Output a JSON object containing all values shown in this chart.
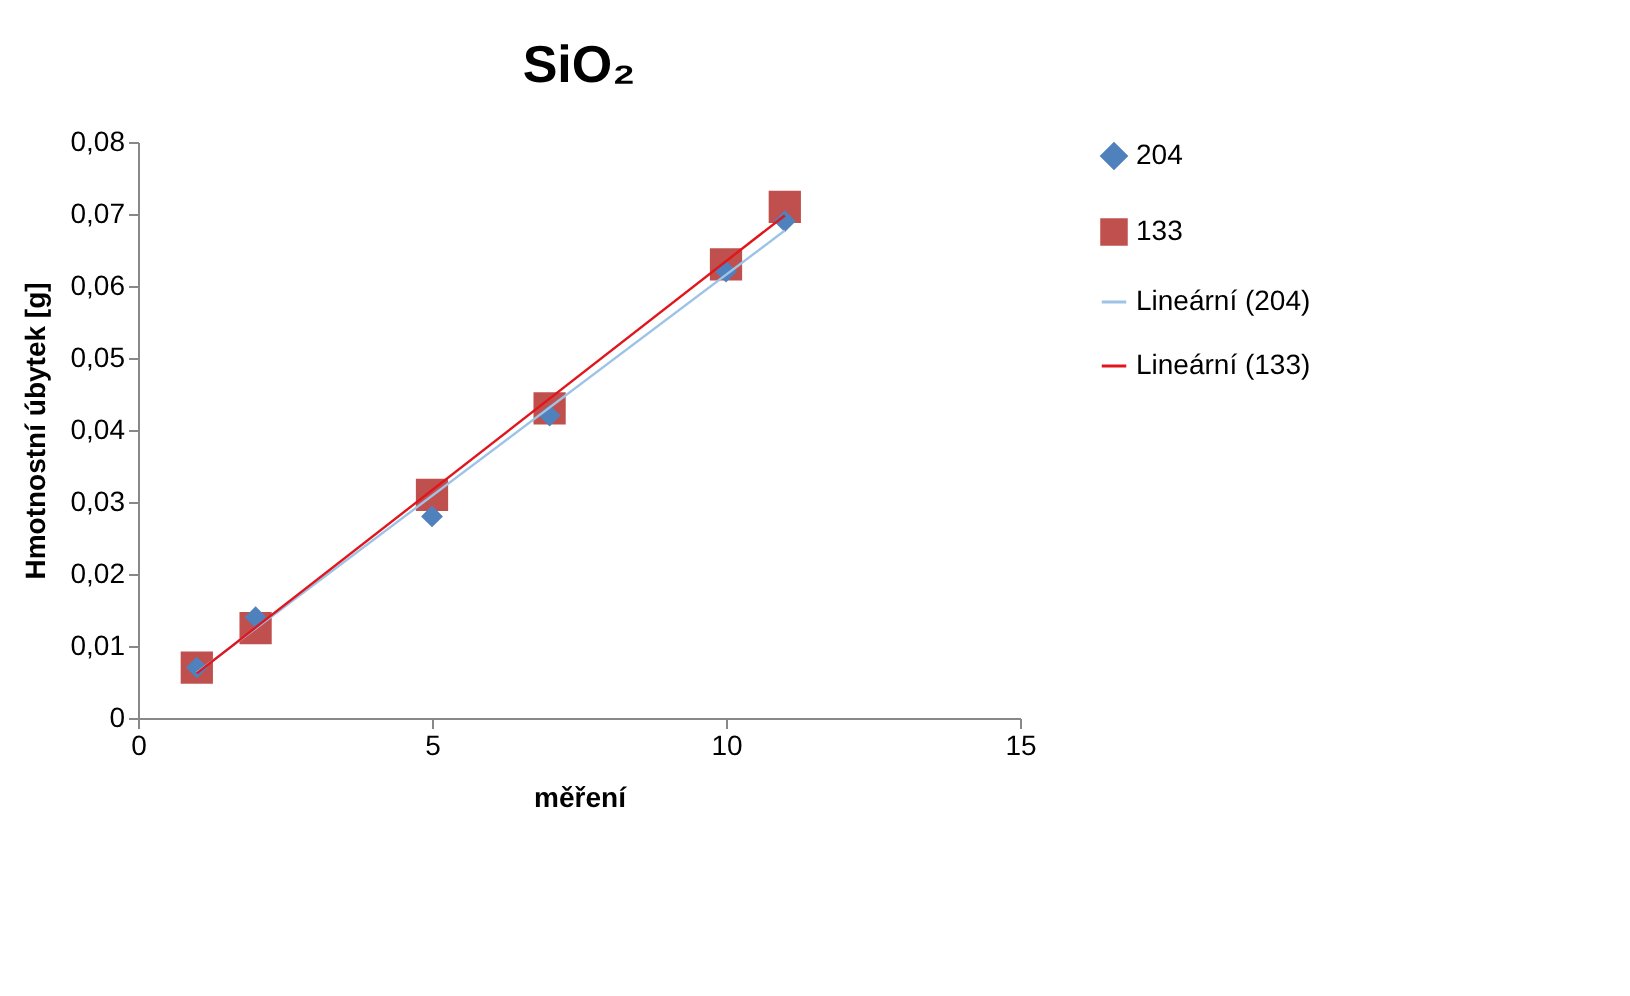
{
  "chart_data": {
    "type": "scatter",
    "title": "SiO₂",
    "xlabel": "měření",
    "ylabel": "Hmotnostní úbytek [g]",
    "xlim": [
      0,
      15
    ],
    "xticks": [
      0,
      5,
      10,
      15
    ],
    "ylim": [
      0,
      0.08
    ],
    "yticks": [
      0,
      {
        "value": 0.01,
        "label": "0,01"
      },
      {
        "value": 0.02,
        "label": "0,02"
      },
      {
        "value": 0.03,
        "label": "0,03"
      },
      {
        "value": 0.04,
        "label": "0,04"
      },
      {
        "value": 0.05,
        "label": "0,05"
      },
      {
        "value": 0.06,
        "label": "0,06"
      },
      {
        "value": 0.07,
        "label": "0,07"
      },
      {
        "value": 0.08,
        "label": "0,08"
      }
    ],
    "grid": false,
    "legend": "right",
    "series": [
      {
        "name": "204",
        "type": "scatter",
        "marker": "diamond",
        "color": "#4f81bd",
        "x": [
          1,
          2,
          5,
          7,
          10,
          11
        ],
        "values": [
          0.007,
          0.014,
          0.028,
          0.042,
          0.062,
          0.069
        ]
      },
      {
        "name": "133",
        "type": "scatter",
        "marker": "square",
        "color": "#c0504d",
        "x": [
          1,
          2,
          5,
          7,
          10,
          11
        ],
        "values": [
          0.007,
          0.0125,
          0.031,
          0.043,
          0.063,
          0.071
        ]
      },
      {
        "name": "Lineární (204)",
        "type": "line",
        "marker": "none",
        "color": "#9dc3e6",
        "x": [
          1,
          11
        ],
        "values": [
          0.0063,
          0.0677
        ]
      },
      {
        "name": "Lineární (133)",
        "type": "line",
        "marker": "none",
        "color": "#e0161c",
        "x": [
          1,
          11
        ],
        "values": [
          0.0062,
          0.0698
        ]
      }
    ]
  }
}
